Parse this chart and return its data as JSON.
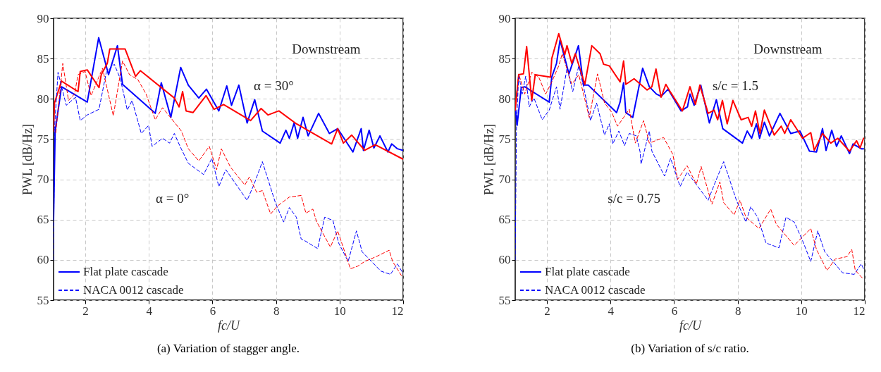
{
  "chart_data": [
    {
      "type": "line",
      "title": "(a)  Variation of stagger angle.",
      "xlabel": "fc/U",
      "ylabel": "PWL [dB/Hz]",
      "xlim": [
        1,
        12
      ],
      "ylim": [
        55,
        90
      ],
      "xticks": [
        2,
        4,
        6,
        8,
        10,
        12
      ],
      "yticks": [
        55,
        60,
        65,
        70,
        75,
        80,
        85,
        90
      ],
      "grid": true,
      "legend": "bottom left",
      "annotations": [
        "Downstream",
        "α = 30°",
        "α = 0°"
      ],
      "series": [
        {
          "name": "Flat plate cascade",
          "color": "#0000ff",
          "line_style": "solid",
          "x": [
            1.0,
            1.05,
            1.25,
            2.06,
            2.42,
            2.73,
            3.01,
            3.17,
            4.2,
            4.39,
            4.69,
            5.0,
            5.24,
            5.57,
            5.81,
            6.2,
            6.45,
            6.6,
            6.83,
            7.09,
            7.33,
            7.57,
            8.13,
            8.31,
            8.42,
            8.57,
            8.68,
            8.85,
            9.01,
            9.34,
            9.68,
            9.94,
            10.42,
            10.68,
            10.75,
            10.93,
            11.08,
            11.27,
            11.52,
            11.64,
            11.82,
            12.0
          ],
          "values": [
            65,
            76,
            81.5,
            79.6,
            87.6,
            83.0,
            86.6,
            81.8,
            78.2,
            82.0,
            77.7,
            83.9,
            81.7,
            80.1,
            81.2,
            78.5,
            81.6,
            79.2,
            81.7,
            77.0,
            79.9,
            76.0,
            74.5,
            76.1,
            75.1,
            77.0,
            75.1,
            77.7,
            75.4,
            78.2,
            75.7,
            76.3,
            73.4,
            76.3,
            73.6,
            76.1,
            73.9,
            75.4,
            73.4,
            74.4,
            73.8,
            73.6
          ]
        },
        {
          "color": "#ff0000",
          "line_style": "solid",
          "x": [
            1.0,
            1.03,
            1.25,
            1.77,
            1.84,
            2.06,
            2.43,
            2.5,
            2.69,
            2.77,
            3.25,
            3.58,
            3.73,
            4.8,
            4.95,
            5.06,
            5.17,
            5.39,
            5.8,
            6.05,
            6.35,
            7.2,
            7.53,
            7.75,
            8.09,
            8.64,
            9.75,
            9.94,
            10.12,
            10.38,
            10.79,
            11.12,
            12.0
          ],
          "values": [
            76,
            79.5,
            82.2,
            80.9,
            83.4,
            83.6,
            81.4,
            83.0,
            84.4,
            86.2,
            86.2,
            82.8,
            83.5,
            80.1,
            79.0,
            80.9,
            78.5,
            78.3,
            80.4,
            78.7,
            79.3,
            77.3,
            78.8,
            78.0,
            78.5,
            76.9,
            74.4,
            76.3,
            74.5,
            75.5,
            73.6,
            74.3,
            72.5
          ]
        },
        {
          "name": "NACA 0012 cascade",
          "color": "#0000ff",
          "line_style": "dashed",
          "x": [
            1.0,
            1.03,
            1.14,
            1.4,
            1.69,
            1.84,
            2.06,
            2.43,
            2.66,
            2.91,
            3.1,
            3.32,
            3.47,
            3.76,
            3.99,
            4.1,
            4.43,
            4.65,
            4.8,
            4.98,
            5.24,
            5.72,
            5.98,
            6.2,
            6.42,
            7.09,
            7.31,
            7.57,
            7.98,
            8.24,
            8.42,
            8.64,
            8.79,
            8.94,
            9.31,
            9.53,
            9.79,
            9.97,
            10.27,
            10.53,
            10.71,
            11.3,
            11.6,
            11.82,
            12.0
          ],
          "values": [
            60,
            76.3,
            83.3,
            79.2,
            80.2,
            77.3,
            78.0,
            78.7,
            83.3,
            84.3,
            82.5,
            78.6,
            79.8,
            75.7,
            76.7,
            74.1,
            75.1,
            74.5,
            75.7,
            74.1,
            72.0,
            70.6,
            72.6,
            69.1,
            71.2,
            67.4,
            69.4,
            72.2,
            67.1,
            64.7,
            66.5,
            65.3,
            62.6,
            62.3,
            61.4,
            65.3,
            64.9,
            62.1,
            59.8,
            63.6,
            61.0,
            58.6,
            58.2,
            59.5,
            58.3
          ]
        },
        {
          "color": "#ff0000",
          "line_style": "dashed",
          "x": [
            1.07,
            1.29,
            1.47,
            1.66,
            1.77,
            1.99,
            2.18,
            2.54,
            2.88,
            3.17,
            3.39,
            3.65,
            3.91,
            4.2,
            4.43,
            4.8,
            5.02,
            5.24,
            5.57,
            5.9,
            6.13,
            6.28,
            6.57,
            7.02,
            7.16,
            7.39,
            7.57,
            7.83,
            8.05,
            8.42,
            8.79,
            8.94,
            9.16,
            9.27,
            9.71,
            9.94,
            10.34,
            10.56,
            10.79,
            11.15,
            11.56,
            11.67,
            11.97
          ],
          "values": [
            75.8,
            84.4,
            79.8,
            80.6,
            83.0,
            83.4,
            80.4,
            83.8,
            77.9,
            84.7,
            83.0,
            82.4,
            80.6,
            77.4,
            78.9,
            77.1,
            76.0,
            73.8,
            72.3,
            74.1,
            71.2,
            73.8,
            71.5,
            69.3,
            70.3,
            68.4,
            68.6,
            65.7,
            66.7,
            67.8,
            68.0,
            65.8,
            66.3,
            64.8,
            61.6,
            63.6,
            58.9,
            59.2,
            59.8,
            60.4,
            61.2,
            59.8,
            57.9
          ]
        }
      ]
    },
    {
      "type": "line",
      "title": "(b)  Variation of s/c ratio.",
      "xlabel": "fc/U",
      "ylabel": "PWL [dB/Hz]",
      "xlim": [
        1,
        12
      ],
      "ylim": [
        55,
        90
      ],
      "xticks": [
        2,
        4,
        6,
        8,
        10,
        12
      ],
      "yticks": [
        55,
        60,
        65,
        70,
        75,
        80,
        85,
        90
      ],
      "grid": true,
      "legend": "bottom left",
      "annotations": [
        "Downstream",
        "s/c = 1.5",
        "s/c = 0.75"
      ],
      "series": [
        {
          "name": "Flat plate cascade",
          "color": "#0000ff",
          "line_style": "solid",
          "x": [
            1.01,
            1.06,
            1.19,
            1.3,
            2.07,
            2.15,
            2.3,
            2.41,
            2.69,
            2.99,
            3.15,
            3.3,
            4.19,
            4.3,
            4.41,
            4.48,
            4.7,
            5.01,
            5.22,
            5.44,
            5.59,
            5.81,
            6.22,
            6.42,
            6.5,
            6.63,
            6.84,
            7.11,
            7.33,
            7.53,
            8.15,
            8.3,
            8.44,
            8.59,
            8.69,
            8.84,
            9.0,
            9.33,
            9.67,
            9.96,
            10.26,
            10.48,
            10.67,
            10.78,
            10.96,
            11.11,
            11.26,
            11.52,
            11.63,
            11.89,
            11.96
          ],
          "values": [
            78.6,
            76.7,
            81.4,
            81.5,
            79.6,
            82.7,
            84.4,
            87.3,
            83.1,
            86.6,
            81.7,
            81.7,
            78.3,
            79.6,
            82.0,
            78.3,
            77.7,
            83.8,
            81.5,
            80.6,
            80.3,
            81.2,
            78.5,
            79.0,
            80.6,
            79.2,
            81.7,
            77.0,
            79.9,
            76.3,
            74.5,
            76.0,
            75.1,
            76.9,
            75.1,
            77.1,
            75.4,
            78.2,
            75.7,
            76.0,
            73.5,
            73.4,
            76.3,
            73.6,
            76.1,
            74.1,
            75.4,
            73.2,
            74.4,
            73.8,
            73.8
          ]
        },
        {
          "color": "#ff0000",
          "line_style": "solid",
          "x": [
            1.0,
            1.11,
            1.26,
            1.36,
            1.52,
            1.63,
            2.11,
            2.15,
            2.37,
            2.56,
            2.63,
            2.78,
            2.89,
            3.04,
            3.19,
            3.41,
            3.67,
            3.78,
            3.96,
            4.3,
            4.41,
            4.48,
            4.74,
            5.15,
            5.3,
            5.43,
            5.59,
            5.74,
            5.89,
            6.26,
            6.5,
            6.67,
            6.81,
            7.07,
            7.26,
            7.37,
            7.52,
            7.67,
            7.85,
            8.11,
            8.33,
            8.44,
            8.56,
            8.7,
            8.84,
            9.15,
            9.37,
            9.48,
            9.67,
            9.85,
            10.04,
            10.3,
            10.41,
            10.67,
            10.93,
            11.15,
            11.52,
            11.74,
            11.85,
            11.96
          ],
          "values": [
            78.6,
            83.0,
            83.1,
            86.5,
            79.8,
            83.0,
            82.7,
            85.0,
            88.1,
            85.5,
            86.6,
            84.4,
            85.6,
            83.7,
            81.8,
            86.6,
            85.6,
            84.3,
            84.1,
            82.1,
            84.7,
            81.8,
            82.5,
            81.1,
            81.5,
            83.7,
            80.2,
            81.8,
            80.8,
            78.5,
            81.5,
            79.3,
            81.7,
            78.2,
            78.6,
            77.4,
            79.8,
            76.9,
            79.8,
            77.4,
            77.7,
            76.6,
            78.5,
            75.7,
            78.6,
            75.5,
            76.6,
            75.7,
            77.4,
            76.3,
            75.1,
            75.8,
            73.6,
            75.7,
            74.5,
            75.1,
            73.5,
            74.8,
            73.9,
            75.1
          ]
        },
        {
          "name": "NACA 0012 cascade",
          "color": "#0000ff",
          "line_style": "dashed",
          "x": [
            1.0,
            1.04,
            1.11,
            1.22,
            1.33,
            1.44,
            1.59,
            1.85,
            2.07,
            2.3,
            2.41,
            2.63,
            2.81,
            3.0,
            3.15,
            3.37,
            3.56,
            3.81,
            3.96,
            4.07,
            4.26,
            4.44,
            4.59,
            4.81,
            4.93,
            4.96,
            5.22,
            5.3,
            5.7,
            5.89,
            6.19,
            6.41,
            7.07,
            7.3,
            7.56,
            7.96,
            8.26,
            8.41,
            8.63,
            8.89,
            9.3,
            9.52,
            9.78,
            10.04,
            10.3,
            10.52,
            10.74,
            11.3,
            11.67,
            11.89,
            11.96
          ],
          "values": [
            60,
            76.6,
            83.0,
            80.6,
            82.8,
            79.0,
            80.1,
            77.4,
            78.6,
            81.5,
            78.7,
            83.8,
            80.9,
            84.1,
            81.5,
            77.3,
            79.5,
            75.5,
            76.9,
            74.4,
            76.0,
            74.2,
            75.7,
            75.4,
            73.4,
            71.9,
            76.0,
            73.5,
            70.4,
            72.6,
            69.1,
            70.9,
            67.4,
            69.7,
            72.2,
            67.4,
            64.7,
            66.6,
            65.3,
            62.1,
            61.5,
            65.3,
            64.7,
            62.4,
            59.8,
            63.6,
            61.0,
            58.4,
            58.2,
            59.5,
            58.9
          ]
        },
        {
          "color": "#ff0000",
          "line_style": "dashed",
          "x": [
            1.0,
            1.11,
            1.3,
            1.52,
            1.74,
            1.96,
            2.15,
            2.37,
            2.48,
            2.78,
            3.0,
            3.33,
            3.59,
            3.81,
            4.04,
            4.22,
            4.59,
            4.78,
            5.04,
            5.22,
            5.67,
            5.96,
            6.11,
            6.41,
            6.7,
            6.85,
            7.19,
            7.44,
            7.56,
            7.89,
            8.07,
            8.26,
            8.67,
            9.04,
            9.22,
            9.78,
            10.3,
            10.48,
            10.81,
            11.07,
            11.44,
            11.59,
            11.7,
            11.96
          ],
          "values": [
            79.2,
            83.1,
            80.6,
            83.3,
            82.7,
            80.6,
            82.1,
            84.1,
            85.6,
            81.8,
            83.0,
            77.7,
            83.1,
            79.5,
            78.3,
            76.6,
            78.7,
            74.5,
            77.3,
            74.5,
            75.2,
            73.1,
            70.0,
            71.7,
            69.4,
            71.6,
            66.9,
            69.7,
            67.1,
            65.6,
            67.4,
            65.3,
            63.9,
            66.3,
            64.4,
            61.8,
            63.9,
            61.3,
            58.7,
            60.1,
            60.4,
            61.3,
            58.7,
            57.6
          ]
        }
      ]
    }
  ]
}
